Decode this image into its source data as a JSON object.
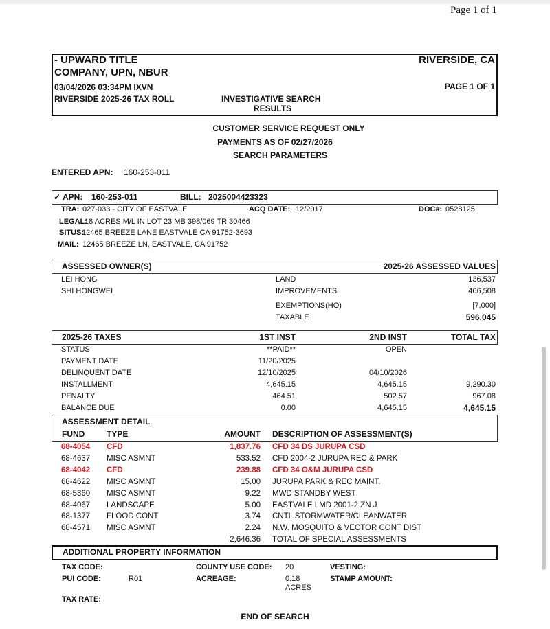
{
  "page_indicator": "Page 1 of 1",
  "header": {
    "company_line1": "- UPWARD TITLE",
    "company_line2": "COMPANY, UPN, NBUR",
    "location": "RIVERSIDE, CA",
    "datetime": "03/04/2026  03:34PM  IXVN",
    "page": "PAGE 1 OF 1",
    "roll": "RIVERSIDE  2025-26 TAX ROLL",
    "report_line1": "INVESTIGATIVE SEARCH",
    "report_line2": "RESULTS"
  },
  "notice": {
    "line1": "CUSTOMER SERVICE REQUEST ONLY",
    "line2": "PAYMENTS AS OF 02/27/2026",
    "line3": "SEARCH PARAMETERS"
  },
  "entered_apn": {
    "label": "ENTERED APN:",
    "value": "160-253-011"
  },
  "parcel": {
    "check": "✓",
    "apn_label": "APN:",
    "apn": "160-253-011",
    "bill_label": "BILL:",
    "bill": "2025004423323",
    "tra_label": "TRA:",
    "tra": "027-033 - CITY OF EASTVALE",
    "acq_label": "ACQ DATE:",
    "acq": "12/2017",
    "doc_label": "DOC#:",
    "doc": "0528125",
    "legal_label": "LEGAL:",
    "legal": ".18 ACRES M/L IN LOT 23 MB 398/069 TR 30466",
    "situs_label": "SITUS:",
    "situs": "12465 BREEZE LANE EASTVALE CA 91752-3693",
    "mail_label": "MAIL:",
    "mail": "12465 BREEZE LN, EASTVALE, CA 91752"
  },
  "owners": {
    "title": "ASSESSED OWNER(S)",
    "values_title": "2025-26 ASSESSED VALUES",
    "names": [
      "LEI HONG",
      "SHI HONGWEI"
    ],
    "values": [
      {
        "label": "LAND",
        "value": "136,537"
      },
      {
        "label": "IMPROVEMENTS",
        "value": "466,508"
      },
      {
        "label": "EXEMPTIONS(HO)",
        "value": "[7,000]"
      },
      {
        "label": "TAXABLE",
        "value": "596,045"
      }
    ]
  },
  "taxes": {
    "title": "2025-26 TAXES",
    "col1": "1ST INST",
    "col2": "2ND INST",
    "col3": "TOTAL TAX",
    "rows": [
      {
        "label": "STATUS",
        "i1": "**PAID**",
        "i2": "OPEN",
        "t": ""
      },
      {
        "label": "PAYMENT DATE",
        "i1": "11/20/2025",
        "i2": "",
        "t": ""
      },
      {
        "label": "DELINQUENT DATE",
        "i1": "12/10/2025",
        "i2": "04/10/2026",
        "t": ""
      },
      {
        "label": "INSTALLMENT",
        "i1": "4,645.15",
        "i2": "4,645.15",
        "t": "9,290.30"
      },
      {
        "label": "PENALTY",
        "i1": "464.51",
        "i2": "502.57",
        "t": "967.08"
      },
      {
        "label": "BALANCE DUE",
        "i1": "0.00",
        "i2": "4,645.15",
        "t": "4,645.15"
      }
    ]
  },
  "assessment": {
    "title": "ASSESSMENT DETAIL",
    "h_fund": "FUND",
    "h_type": "TYPE",
    "h_amount": "AMOUNT",
    "h_desc": "DESCRIPTION OF ASSESSMENT(S)",
    "rows": [
      {
        "fund": "68-4054",
        "type": "CFD",
        "amount": "1,837.76",
        "desc": "CFD 34 DS JURUPA CSD",
        "highlight": true
      },
      {
        "fund": "68-4637",
        "type": "MISC ASMNT",
        "amount": "533.52",
        "desc": "CFD 2004-2 JURUPA REC & PARK",
        "highlight": false
      },
      {
        "fund": "68-4042",
        "type": "CFD",
        "amount": "239.88",
        "desc": "CFD 34 O&M JURUPA CSD",
        "highlight": true
      },
      {
        "fund": "68-4622",
        "type": "MISC ASMNT",
        "amount": "15.00",
        "desc": "JURUPA PARK & REC MAINT.",
        "highlight": false
      },
      {
        "fund": "68-5360",
        "type": "MISC ASMNT",
        "amount": "9.22",
        "desc": "MWD STANDBY WEST",
        "highlight": false
      },
      {
        "fund": "68-4067",
        "type": "LANDSCAPE",
        "amount": "5.00",
        "desc": "EASTVALE LMD 2001-2 ZN J",
        "highlight": false
      },
      {
        "fund": "68-1377",
        "type": "FLOOD CONT",
        "amount": "3.74",
        "desc": "CNTL STORMWATER/CLEANWATER",
        "highlight": false
      },
      {
        "fund": "68-4571",
        "type": "MISC ASMNT",
        "amount": "2.24",
        "desc": "N.W. MOSQUITO & VECTOR CONT DIST",
        "highlight": false
      }
    ],
    "total": "2,646.36",
    "total_label": "TOTAL OF SPECIAL ASSESSMENTS",
    "highlight_color": "#e0151b"
  },
  "additional": {
    "title": "ADDITIONAL PROPERTY INFORMATION",
    "tax_code_label": "TAX CODE:",
    "tax_code": "",
    "county_use_label": "COUNTY USE CODE:",
    "county_use": "20",
    "vesting_label": "VESTING:",
    "pui_label": "PUI CODE:",
    "pui": "R01",
    "acreage_label": "ACREAGE:",
    "acreage": "0.18",
    "acreage_unit": "ACRES",
    "stamp_label": "STAMP AMOUNT:",
    "tax_rate_label": "TAX RATE:"
  },
  "footer": "END OF SEARCH"
}
